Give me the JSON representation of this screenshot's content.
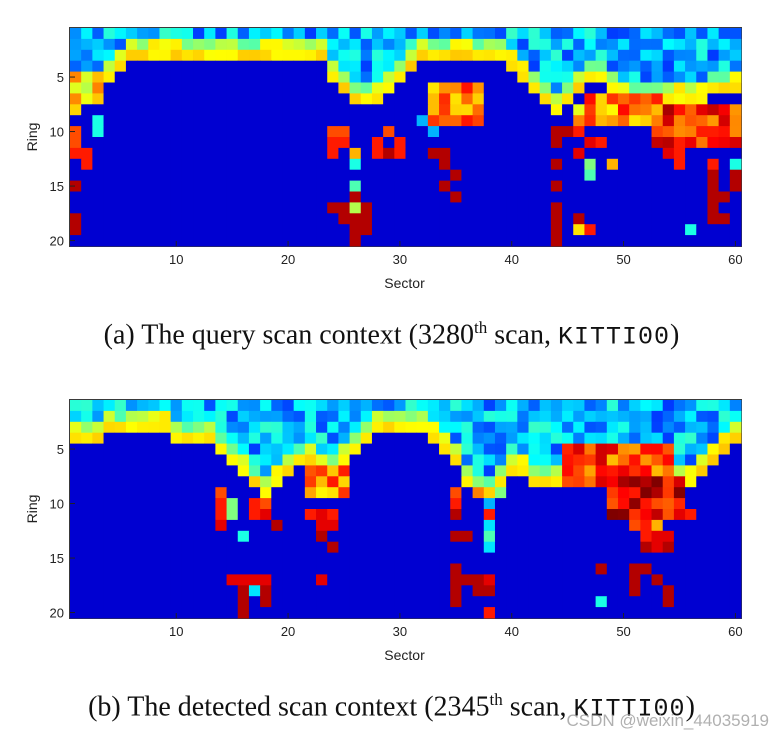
{
  "watermark": "CSDN @weixin_44035919",
  "chart_data": [
    {
      "type": "heatmap",
      "xlabel": "Sector",
      "ylabel": "Ring",
      "xticks": [
        10,
        20,
        30,
        40,
        50,
        60
      ],
      "yticks": [
        5,
        10,
        15,
        20
      ],
      "xlim": [
        1,
        60
      ],
      "ylim": [
        1,
        20
      ],
      "grid": false,
      "colormap": "jet",
      "caption": {
        "prefix": "(a) The query scan context (3280",
        "sup": "th",
        "middle": " scan, ",
        "mono": "KITTI00",
        "suffix": ")"
      },
      "profile": [
        [
          1,
          8
        ],
        [
          2,
          7
        ],
        [
          3,
          6
        ],
        [
          4,
          5
        ],
        [
          5,
          4
        ],
        [
          6,
          3
        ],
        [
          7,
          3
        ],
        [
          8,
          3
        ],
        [
          9,
          3
        ],
        [
          10,
          3
        ],
        [
          11,
          3
        ],
        [
          12,
          3
        ],
        [
          13,
          3
        ],
        [
          14,
          3
        ],
        [
          15,
          3
        ],
        [
          16,
          3
        ],
        [
          17,
          3
        ],
        [
          18,
          3
        ],
        [
          19,
          3
        ],
        [
          20,
          3
        ],
        [
          21,
          3
        ],
        [
          22,
          3
        ],
        [
          23,
          3
        ],
        [
          24,
          5
        ],
        [
          25,
          6
        ],
        [
          26,
          7
        ],
        [
          27,
          7
        ],
        [
          28,
          7
        ],
        [
          29,
          6
        ],
        [
          30,
          5
        ],
        [
          31,
          4
        ],
        [
          32,
          3
        ],
        [
          33,
          3
        ],
        [
          34,
          3
        ],
        [
          35,
          3
        ],
        [
          36,
          3
        ],
        [
          37,
          3
        ],
        [
          38,
          3
        ],
        [
          39,
          3
        ],
        [
          40,
          4
        ],
        [
          41,
          5
        ],
        [
          42,
          6
        ],
        [
          43,
          7
        ],
        [
          44,
          8
        ],
        [
          45,
          7
        ],
        [
          46,
          6
        ],
        [
          47,
          5
        ],
        [
          48,
          5
        ],
        [
          49,
          6
        ],
        [
          50,
          7
        ],
        [
          51,
          7
        ],
        [
          52,
          7
        ],
        [
          53,
          7
        ],
        [
          54,
          7
        ],
        [
          55,
          7
        ],
        [
          56,
          7
        ],
        [
          57,
          7
        ],
        [
          58,
          6
        ],
        [
          59,
          6
        ],
        [
          60,
          6
        ]
      ],
      "blobs": [
        {
          "x": [
            1,
            3
          ],
          "y": [
            5,
            7
          ],
          "v": 0.65
        },
        {
          "x": [
            53,
            60
          ],
          "y": [
            8,
            11
          ],
          "v": 0.85
        },
        {
          "x": [
            47,
            53
          ],
          "y": [
            7,
            9
          ],
          "v": 0.75
        },
        {
          "x": [
            33,
            37
          ],
          "y": [
            6,
            9
          ],
          "v": 0.75
        }
      ],
      "sparse": [
        [
          1,
          10,
          0.8
        ],
        [
          1,
          11,
          0.8
        ],
        [
          1,
          12,
          0.85
        ],
        [
          1,
          15,
          0.95
        ],
        [
          1,
          18,
          0.95
        ],
        [
          1,
          19,
          0.95
        ],
        [
          2,
          12,
          0.85
        ],
        [
          2,
          13,
          0.85
        ],
        [
          3,
          9,
          0.4
        ],
        [
          3,
          10,
          0.4
        ],
        [
          24,
          10,
          0.8
        ],
        [
          24,
          11,
          0.85
        ],
        [
          24,
          12,
          0.85
        ],
        [
          25,
          10,
          0.8
        ],
        [
          25,
          11,
          0.85
        ],
        [
          26,
          12,
          0.7
        ],
        [
          26,
          13,
          0.4
        ],
        [
          26,
          15,
          0.45
        ],
        [
          26,
          16,
          0.95
        ],
        [
          25,
          17,
          0.95
        ],
        [
          26,
          17,
          0.55
        ],
        [
          27,
          17,
          0.95
        ],
        [
          24,
          17,
          0.95
        ],
        [
          25,
          18,
          0.95
        ],
        [
          26,
          18,
          0.95
        ],
        [
          26,
          19,
          0.95
        ],
        [
          27,
          19,
          0.95
        ],
        [
          26,
          20,
          0.95
        ],
        [
          27,
          18,
          0.95
        ],
        [
          28,
          11,
          0.85
        ],
        [
          28,
          12,
          0.85
        ],
        [
          29,
          12,
          0.95
        ],
        [
          29,
          10,
          0.8
        ],
        [
          30,
          11,
          0.85
        ],
        [
          30,
          12,
          0.85
        ],
        [
          33,
          12,
          0.95
        ],
        [
          34,
          12,
          0.95
        ],
        [
          34,
          13,
          0.95
        ],
        [
          34,
          15,
          0.95
        ],
        [
          35,
          14,
          0.95
        ],
        [
          35,
          16,
          0.95
        ],
        [
          33,
          10,
          0.3
        ],
        [
          32,
          9,
          0.3
        ],
        [
          44,
          10,
          0.95
        ],
        [
          44,
          11,
          0.95
        ],
        [
          44,
          13,
          0.95
        ],
        [
          44,
          15,
          0.95
        ],
        [
          44,
          17,
          0.95
        ],
        [
          44,
          18,
          0.95
        ],
        [
          44,
          19,
          0.95
        ],
        [
          44,
          20,
          0.95
        ],
        [
          45,
          10,
          0.95
        ],
        [
          46,
          8,
          0.6
        ],
        [
          46,
          9,
          0.75
        ],
        [
          46,
          10,
          0.85
        ],
        [
          46,
          12,
          0.9
        ],
        [
          47,
          11,
          0.9
        ],
        [
          47,
          13,
          0.5
        ],
        [
          47,
          14,
          0.45
        ],
        [
          48,
          11,
          0.85
        ],
        [
          49,
          13,
          0.7
        ],
        [
          46,
          18,
          0.95
        ],
        [
          46,
          19,
          0.65
        ],
        [
          47,
          19,
          0.85
        ],
        [
          54,
          12,
          0.9
        ],
        [
          55,
          12,
          0.85
        ],
        [
          55,
          13,
          0.85
        ],
        [
          58,
          13,
          0.85
        ],
        [
          58,
          14,
          0.95
        ],
        [
          58,
          15,
          0.95
        ],
        [
          58,
          16,
          0.95
        ],
        [
          58,
          17,
          0.95
        ],
        [
          58,
          18,
          0.95
        ],
        [
          59,
          16,
          0.95
        ],
        [
          59,
          18,
          0.95
        ],
        [
          60,
          13,
          0.4
        ],
        [
          60,
          15,
          0.95
        ],
        [
          56,
          19,
          0.4
        ],
        [
          60,
          14,
          0.95
        ]
      ]
    },
    {
      "type": "heatmap",
      "xlabel": "Sector",
      "ylabel": "Ring",
      "xticks": [
        10,
        20,
        30,
        40,
        50,
        60
      ],
      "yticks": [
        5,
        10,
        15,
        20
      ],
      "xlim": [
        1,
        60
      ],
      "ylim": [
        1,
        20
      ],
      "grid": false,
      "colormap": "jet",
      "caption": {
        "prefix": "(b) The detected scan context (2345",
        "sup": "th",
        "middle": " scan, ",
        "mono": "KITTI00",
        "suffix": ")"
      },
      "profile": [
        [
          1,
          4
        ],
        [
          2,
          4
        ],
        [
          3,
          4
        ],
        [
          4,
          3
        ],
        [
          5,
          3
        ],
        [
          6,
          3
        ],
        [
          7,
          3
        ],
        [
          8,
          3
        ],
        [
          9,
          3
        ],
        [
          10,
          4
        ],
        [
          11,
          4
        ],
        [
          12,
          4
        ],
        [
          13,
          4
        ],
        [
          14,
          5
        ],
        [
          15,
          6
        ],
        [
          16,
          7
        ],
        [
          17,
          8
        ],
        [
          18,
          9
        ],
        [
          19,
          8
        ],
        [
          20,
          7
        ],
        [
          21,
          6
        ],
        [
          22,
          6
        ],
        [
          23,
          7
        ],
        [
          24,
          7
        ],
        [
          25,
          6
        ],
        [
          26,
          5
        ],
        [
          27,
          4
        ],
        [
          28,
          3
        ],
        [
          29,
          3
        ],
        [
          30,
          3
        ],
        [
          31,
          3
        ],
        [
          32,
          3
        ],
        [
          33,
          4
        ],
        [
          34,
          5
        ],
        [
          35,
          6
        ],
        [
          36,
          8
        ],
        [
          37,
          9
        ],
        [
          38,
          9
        ],
        [
          39,
          8
        ],
        [
          40,
          7
        ],
        [
          41,
          7
        ],
        [
          42,
          8
        ],
        [
          43,
          8
        ],
        [
          44,
          8
        ],
        [
          45,
          8
        ],
        [
          46,
          8
        ],
        [
          47,
          8
        ],
        [
          48,
          8
        ],
        [
          49,
          9
        ],
        [
          50,
          9
        ],
        [
          51,
          9
        ],
        [
          52,
          9
        ],
        [
          53,
          9
        ],
        [
          54,
          9
        ],
        [
          55,
          8
        ],
        [
          56,
          8
        ],
        [
          57,
          7
        ],
        [
          58,
          6
        ],
        [
          59,
          5
        ],
        [
          60,
          4
        ]
      ],
      "blobs": [
        {
          "x": [
            45,
            54
          ],
          "y": [
            5,
            8
          ],
          "v": 0.8
        },
        {
          "x": [
            49,
            55
          ],
          "y": [
            8,
            11
          ],
          "v": 0.9
        },
        {
          "x": [
            22,
            25
          ],
          "y": [
            7,
            9
          ],
          "v": 0.75
        }
      ],
      "sparse": [
        [
          14,
          9,
          0.8
        ],
        [
          14,
          10,
          0.85
        ],
        [
          14,
          11,
          0.85
        ],
        [
          14,
          12,
          0.9
        ],
        [
          15,
          10,
          0.5
        ],
        [
          15,
          11,
          0.5
        ],
        [
          16,
          13,
          0.4
        ],
        [
          17,
          10,
          0.85
        ],
        [
          17,
          11,
          0.85
        ],
        [
          18,
          10,
          0.8
        ],
        [
          18,
          11,
          0.9
        ],
        [
          19,
          12,
          0.95
        ],
        [
          17,
          17,
          0.9
        ],
        [
          16,
          17,
          0.9
        ],
        [
          15,
          17,
          0.9
        ],
        [
          18,
          17,
          0.9
        ],
        [
          16,
          18,
          0.95
        ],
        [
          17,
          18,
          0.35
        ],
        [
          18,
          18,
          0.95
        ],
        [
          16,
          19,
          0.95
        ],
        [
          16,
          20,
          0.95
        ],
        [
          18,
          19,
          0.95
        ],
        [
          23,
          11,
          0.9
        ],
        [
          23,
          12,
          0.9
        ],
        [
          23,
          13,
          0.95
        ],
        [
          24,
          11,
          0.85
        ],
        [
          24,
          12,
          0.9
        ],
        [
          24,
          14,
          0.95
        ],
        [
          23,
          17,
          0.9
        ],
        [
          22,
          11,
          0.85
        ],
        [
          35,
          9,
          0.8
        ],
        [
          35,
          10,
          0.85
        ],
        [
          35,
          11,
          0.95
        ],
        [
          35,
          13,
          0.95
        ],
        [
          36,
          13,
          0.95
        ],
        [
          35,
          16,
          0.95
        ],
        [
          35,
          17,
          0.95
        ],
        [
          35,
          18,
          0.95
        ],
        [
          35,
          19,
          0.95
        ],
        [
          36,
          17,
          0.95
        ],
        [
          37,
          17,
          0.95
        ],
        [
          37,
          18,
          0.95
        ],
        [
          38,
          17,
          0.9
        ],
        [
          38,
          18,
          0.95
        ],
        [
          38,
          20,
          0.85
        ],
        [
          37,
          9,
          0.75
        ],
        [
          38,
          10,
          0.3
        ],
        [
          38,
          11,
          0.85
        ],
        [
          38,
          12,
          0.35
        ],
        [
          38,
          13,
          0.45
        ],
        [
          38,
          14,
          0.35
        ],
        [
          39,
          9,
          0.5
        ],
        [
          51,
          12,
          0.8
        ],
        [
          52,
          12,
          0.85
        ],
        [
          52,
          13,
          0.85
        ],
        [
          53,
          12,
          0.7
        ],
        [
          53,
          13,
          0.9
        ],
        [
          53,
          14,
          0.9
        ],
        [
          52,
          14,
          0.95
        ],
        [
          54,
          13,
          0.9
        ],
        [
          54,
          14,
          0.95
        ],
        [
          55,
          11,
          0.9
        ],
        [
          56,
          11,
          0.85
        ],
        [
          48,
          16,
          0.95
        ],
        [
          51,
          16,
          0.95
        ],
        [
          51,
          17,
          0.95
        ],
        [
          51,
          18,
          0.95
        ],
        [
          52,
          16,
          0.95
        ],
        [
          53,
          17,
          0.95
        ],
        [
          54,
          18,
          0.95
        ],
        [
          54,
          19,
          0.95
        ],
        [
          48,
          19,
          0.4
        ]
      ]
    }
  ]
}
